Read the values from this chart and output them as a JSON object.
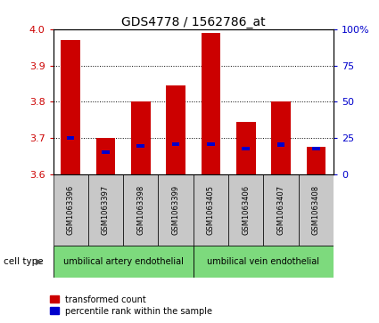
{
  "title": "GDS4778 / 1562786_at",
  "samples": [
    "GSM1063396",
    "GSM1063397",
    "GSM1063398",
    "GSM1063399",
    "GSM1063405",
    "GSM1063406",
    "GSM1063407",
    "GSM1063408"
  ],
  "red_values": [
    3.97,
    3.7,
    3.8,
    3.845,
    3.99,
    3.745,
    3.8,
    3.675
  ],
  "blue_values": [
    3.7,
    3.662,
    3.678,
    3.683,
    3.683,
    3.67,
    3.682,
    3.672
  ],
  "bar_bottom": 3.6,
  "ylim": [
    3.6,
    4.0
  ],
  "yticks": [
    3.6,
    3.7,
    3.8,
    3.9,
    4.0
  ],
  "right_yticks": [
    0,
    25,
    50,
    75,
    100
  ],
  "right_ylabels": [
    "0",
    "25",
    "50",
    "75",
    "100%"
  ],
  "red_color": "#cc0000",
  "blue_color": "#0000cc",
  "bar_width": 0.55,
  "cell_type_labels": [
    "umbilical artery endothelial",
    "umbilical vein endothelial"
  ],
  "tick_label_bg": "#c8c8c8",
  "green_color": "#7dda7d",
  "legend_red": "transformed count",
  "legend_blue": "percentile rank within the sample",
  "cell_type_text": "cell type"
}
